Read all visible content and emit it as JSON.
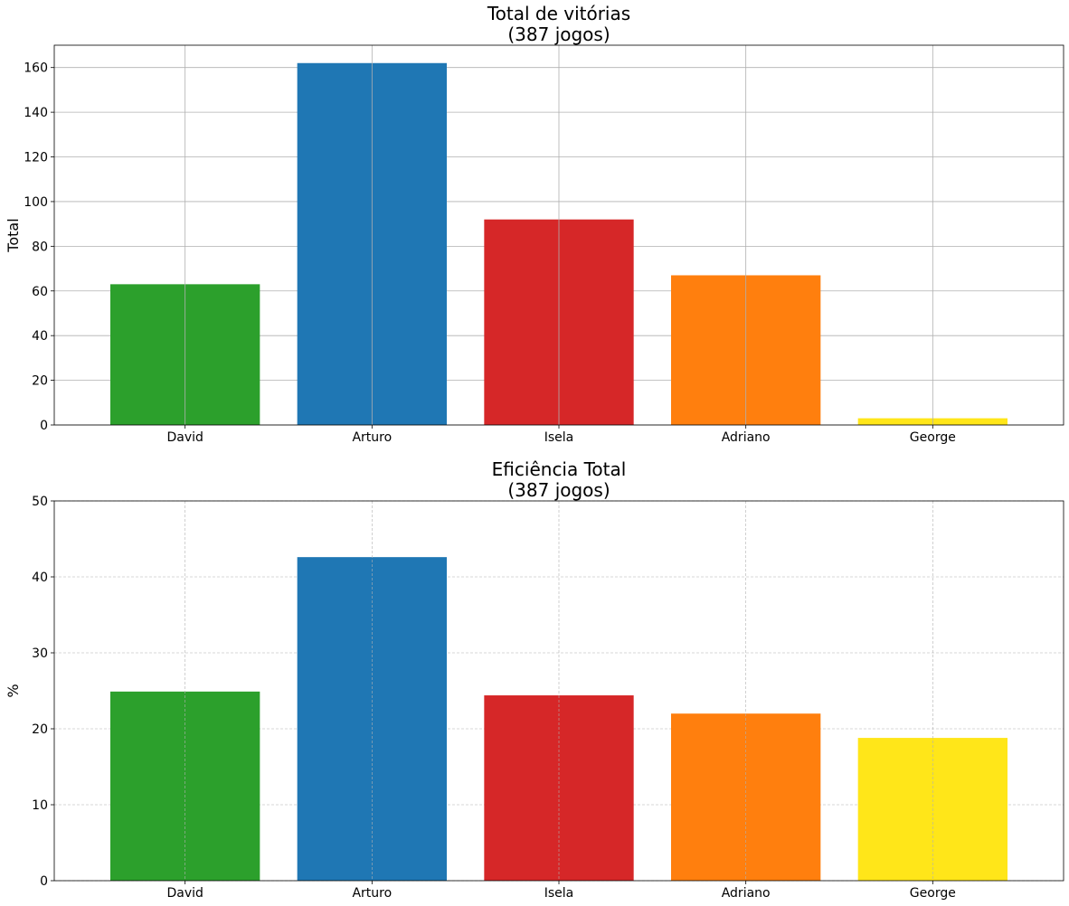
{
  "chart_data": [
    {
      "type": "bar",
      "title_line1": "Total de vitórias",
      "title_line2": "(387 jogos)",
      "xlabel": "",
      "ylabel": "Total",
      "categories": [
        "David",
        "Arturo",
        "Isela",
        "Adriano",
        "George"
      ],
      "values": [
        63,
        162,
        92,
        67,
        3
      ],
      "colors": [
        "#2ca02c",
        "#1f77b4",
        "#d62728",
        "#ff7f0e",
        "#ffe619"
      ],
      "ylim": [
        0,
        170
      ],
      "yticks": [
        0,
        20,
        40,
        60,
        80,
        100,
        120,
        140,
        160
      ],
      "grid": "solid"
    },
    {
      "type": "bar",
      "title_line1": "Eficiência Total",
      "title_line2": "(387 jogos)",
      "xlabel": "",
      "ylabel": "%",
      "categories": [
        "David",
        "Arturo",
        "Isela",
        "Adriano",
        "George"
      ],
      "values": [
        24.9,
        42.6,
        24.4,
        22.0,
        18.8
      ],
      "colors": [
        "#2ca02c",
        "#1f77b4",
        "#d62728",
        "#ff7f0e",
        "#ffe619"
      ],
      "ylim": [
        0,
        50
      ],
      "yticks": [
        0,
        10,
        20,
        30,
        40,
        50
      ],
      "grid": "dashed"
    }
  ]
}
